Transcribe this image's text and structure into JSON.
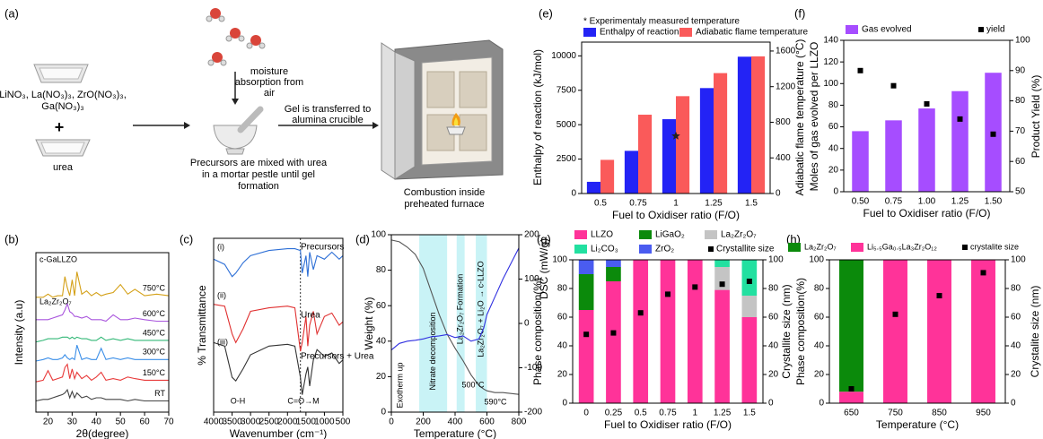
{
  "schematic": {
    "panel": "(a)",
    "precursors": [
      "LiNO₃, La(NO₃)₃, ZrO(NO₃)₃,",
      "Ga(NO₃)₃"
    ],
    "plus": "+",
    "urea": "urea",
    "moisture": [
      "moisture",
      "absorption from",
      "air"
    ],
    "mixing": [
      "Precursors are mixed with urea",
      "in a mortar pestle until gel",
      "formation"
    ],
    "transfer": [
      "Gel is transferred to",
      "alumina crucible"
    ],
    "furnace": [
      "Combustion inside",
      "preheated furnace"
    ]
  },
  "chart_data": [
    {
      "type": "bar",
      "panel": "(e)",
      "xlabel": "Fuel to Oxidiser ratio (F/O)",
      "ylabel": "Enthalpy of reaction (kJ/mol)",
      "y2label": "Adiabatic flame temperature (°C)",
      "categories": [
        "0.5",
        "0.75",
        "1",
        "1.25",
        "1.5"
      ],
      "ylim": [
        0,
        11000
      ],
      "yticks": [
        0,
        2500,
        5000,
        7500,
        10000
      ],
      "y2lim": [
        0,
        1700
      ],
      "y2ticks": [
        0,
        400,
        800,
        1200,
        1600
      ],
      "series": [
        {
          "name": "Enthalpy of reaction",
          "type": "bar",
          "color": "#2323f5",
          "values": [
            850,
            3100,
            5400,
            7660,
            9940
          ]
        },
        {
          "name": "Adiabatic flame temperature",
          "type": "bar",
          "axis": "y2",
          "color": "#fa5a5a",
          "values": [
            378,
            885,
            1093,
            1352,
            1540
          ]
        },
        {
          "name": "* Experimentaly measured temperature",
          "type": "scatter",
          "marker": "star",
          "axis": "y2",
          "color": "#222222",
          "values": [
            null,
            null,
            646,
            null,
            null
          ]
        }
      ]
    },
    {
      "type": "bar",
      "panel": "(f)",
      "xlabel": "Fuel to Oxidiser ratio (F/O)",
      "ylabel": "Moles of gas evolved per LLZO",
      "y2label": "Product Yield (%)",
      "categories": [
        "0.50",
        "0.75",
        "1.00",
        "1.25",
        "1.50"
      ],
      "ylim": [
        0,
        140
      ],
      "yticks": [
        0,
        20,
        40,
        60,
        80,
        100,
        120,
        140
      ],
      "y2lim": [
        50,
        100
      ],
      "y2ticks": [
        50,
        60,
        70,
        80,
        90,
        100
      ],
      "series": [
        {
          "name": "Gas evolved",
          "type": "bar",
          "color": "#a64dff",
          "values": [
            56,
            66,
            77,
            93,
            110
          ]
        },
        {
          "name": "yield",
          "type": "scatter",
          "marker": "square",
          "axis": "y2",
          "color": "#000000",
          "values": [
            90,
            85,
            79,
            74,
            69
          ]
        }
      ]
    },
    {
      "type": "line",
      "panel": "(b)",
      "xlabel": "2θ(degree)",
      "ylabel": "Intensity (a.u)",
      "xlim": [
        15,
        70
      ],
      "xticks": [
        20,
        30,
        40,
        50,
        60,
        70
      ],
      "ylim": [
        0,
        100
      ],
      "annotations": [
        "c-GaLLZO",
        "La₂Zr₂O₇"
      ],
      "x": [
        15,
        18,
        20,
        22,
        24,
        26,
        27,
        28,
        29,
        30,
        31,
        32,
        34,
        36,
        38,
        40,
        42,
        44,
        47,
        50,
        53,
        56,
        60,
        65,
        70
      ],
      "series": [
        {
          "name": "RT",
          "color": "#444444",
          "values": [
            7,
            8,
            8,
            9,
            10,
            11,
            12,
            14,
            9,
            13,
            9,
            12,
            9,
            10,
            8,
            9,
            9,
            8,
            8,
            8,
            7,
            8,
            7,
            7,
            7
          ]
        },
        {
          "name": "150°C",
          "color": "#e83a3a",
          "values": [
            19,
            20,
            26,
            20,
            21,
            22,
            28,
            30,
            21,
            27,
            21,
            25,
            21,
            23,
            20,
            22,
            25,
            20,
            21,
            20,
            22,
            21,
            20,
            20,
            20
          ]
        },
        {
          "name": "300°C",
          "color": "#3a8ee8",
          "values": [
            32,
            33,
            34,
            33,
            33,
            34,
            36,
            34,
            33,
            34,
            33,
            42,
            33,
            34,
            33,
            33,
            40,
            33,
            34,
            33,
            34,
            33,
            33,
            33,
            33
          ]
        },
        {
          "name": "450°C",
          "color": "#33b877",
          "values": [
            44,
            45,
            46,
            46,
            46,
            47,
            47,
            47,
            46,
            47,
            46,
            47,
            46,
            46,
            45,
            45,
            47,
            45,
            46,
            45,
            46,
            45,
            45,
            45,
            45
          ]
        },
        {
          "name": "600°C",
          "color": "#a955dd",
          "values": [
            58,
            58,
            58,
            59,
            60,
            61,
            64,
            68,
            63,
            62,
            60,
            60,
            59,
            60,
            58,
            58,
            58,
            57,
            61,
            58,
            58,
            59,
            58,
            57,
            57
          ]
        },
        {
          "name": "750°C",
          "color": "#d4a017",
          "values": [
            72,
            72,
            74,
            72,
            73,
            73,
            85,
            78,
            73,
            83,
            73,
            88,
            74,
            76,
            73,
            75,
            73,
            74,
            75,
            80,
            74,
            77,
            73,
            74,
            73
          ]
        }
      ]
    },
    {
      "type": "line",
      "panel": "(c)",
      "xlabel": "Wavenumber (cm⁻¹)",
      "ylabel": "% Transmittance",
      "xlim": [
        4000,
        500
      ],
      "xticks": [
        4000,
        3500,
        3000,
        2500,
        2000,
        1500,
        1000,
        500
      ],
      "ylim": [
        0,
        100
      ],
      "reference_x": 1650,
      "annotations": [
        "(i)",
        "(ii)",
        "(iii)",
        "O-H",
        "C=O→M"
      ],
      "x": [
        4000,
        3700,
        3500,
        3400,
        3200,
        3000,
        2500,
        2000,
        1800,
        1650,
        1600,
        1500,
        1450,
        1400,
        1300,
        1200,
        1000,
        800,
        600,
        500
      ],
      "series": [
        {
          "name": "Precursors",
          "color": "#2d6fd6",
          "values": [
            88,
            85,
            78,
            80,
            86,
            90,
            93,
            94,
            94,
            93,
            80,
            90,
            78,
            92,
            82,
            90,
            88,
            92,
            88,
            90
          ]
        },
        {
          "name": "Urea",
          "color": "#e03030",
          "values": [
            62,
            61,
            45,
            40,
            48,
            58,
            60,
            61,
            60,
            35,
            40,
            55,
            38,
            50,
            58,
            45,
            55,
            57,
            50,
            52
          ]
        },
        {
          "name": "Precursors + Urea",
          "color": "#333333",
          "values": [
            40,
            38,
            20,
            18,
            25,
            33,
            38,
            39,
            38,
            20,
            10,
            22,
            26,
            15,
            30,
            36,
            32,
            34,
            28,
            30
          ]
        }
      ]
    },
    {
      "type": "line",
      "panel": "(d)",
      "xlabel": "Temperature (°C)",
      "ylabel": "Weight (%)",
      "y2label": "DSC (mW/g)",
      "xlim": [
        0,
        800
      ],
      "xticks": [
        0,
        200,
        400,
        600,
        800
      ],
      "ylim": [
        0,
        100
      ],
      "yticks": [
        0,
        20,
        40,
        60,
        80,
        100
      ],
      "y2lim": [
        -200,
        200
      ],
      "y2ticks": [
        -200,
        -100,
        0,
        100,
        200
      ],
      "regions": [
        {
          "from": 175,
          "to": 350,
          "label": "Nitrate decomposition"
        },
        {
          "from": 410,
          "to": 460,
          "label": "La₂Zr₂O₇ Formation"
        },
        {
          "from": 530,
          "to": 600,
          "label": "La₂Zr₂O₇ + Li₂O → c-LLZO"
        }
      ],
      "annotations": [
        "Exotherm up",
        "500°C",
        "590°C"
      ],
      "x": [
        0,
        50,
        100,
        150,
        200,
        250,
        300,
        350,
        400,
        450,
        500,
        550,
        580,
        600,
        650,
        700,
        800
      ],
      "series": [
        {
          "color": "#555555",
          "values": [
            97,
            96,
            93,
            89,
            81,
            68,
            55,
            44,
            36,
            29,
            21,
            15,
            13,
            12,
            11,
            11,
            10
          ]
        },
        {
          "color": "#3030e0",
          "axis": "y2",
          "values": [
            -60,
            -45,
            -40,
            -38,
            -35,
            -30,
            -28,
            -25,
            -32,
            -28,
            -40,
            -35,
            -10,
            20,
            60,
            100,
            170
          ]
        }
      ]
    },
    {
      "type": "bar",
      "panel": "(g)",
      "stacked": true,
      "xlabel": "Fuel to Oxidiser ratio (F/O)",
      "ylabel": "Phase composition(%)",
      "y2label": "Crystallite size (nm)",
      "categories": [
        "0",
        "0.25",
        "0.5",
        "0.75",
        "1",
        "1.25",
        "1.5"
      ],
      "ylim": [
        0,
        100
      ],
      "yticks": [
        0,
        20,
        40,
        60,
        80,
        100
      ],
      "y2lim": [
        0,
        100
      ],
      "y2ticks": [
        0,
        20,
        40,
        60,
        80,
        100
      ],
      "series": [
        {
          "name": "LLZO",
          "type": "bar",
          "color": "#ff3399",
          "values": [
            65,
            85,
            100,
            100,
            100,
            79,
            60
          ]
        },
        {
          "name": "LiGaO₂",
          "type": "bar",
          "color": "#0b8a0b",
          "values": [
            25,
            10,
            0,
            0,
            0,
            0,
            0
          ]
        },
        {
          "name": "La₂Zr₂O₇",
          "type": "bar",
          "color": "#c4c4c4",
          "values": [
            0,
            0,
            0,
            0,
            0,
            16,
            15
          ]
        },
        {
          "name": "Li₂CO₃",
          "type": "bar",
          "color": "#22e0a0",
          "values": [
            0,
            0,
            0,
            0,
            0,
            5,
            25
          ]
        },
        {
          "name": "ZrO₂",
          "type": "bar",
          "color": "#4a5cf0",
          "values": [
            10,
            5,
            0,
            0,
            0,
            0,
            0
          ]
        },
        {
          "name": "Crystallite size",
          "type": "scatter",
          "marker": "square",
          "axis": "y2",
          "color": "#000000",
          "values": [
            48,
            49,
            63,
            76,
            81,
            83,
            85
          ]
        }
      ]
    },
    {
      "type": "bar",
      "panel": "(h)",
      "stacked": true,
      "xlabel": "Temperature (°C)",
      "ylabel": "Phase composition(%)",
      "y2label": "Crystalite size (nm)",
      "categories": [
        "650",
        "750",
        "850",
        "950"
      ],
      "ylim": [
        0,
        100
      ],
      "yticks": [
        0,
        20,
        40,
        60,
        80,
        100
      ],
      "y2lim": [
        0,
        100
      ],
      "y2ticks": [
        0,
        20,
        40,
        60,
        80,
        100
      ],
      "series": [
        {
          "name": "Li₅.₅Ga₀.₅La₃Zr₂O₁₂",
          "type": "bar",
          "color": "#ff3399",
          "values": [
            8,
            100,
            100,
            100
          ]
        },
        {
          "name": "La₂Zr₂O₇",
          "type": "bar",
          "color": "#0b8a0b",
          "values": [
            92,
            0,
            0,
            0
          ]
        },
        {
          "name": "crystalite size",
          "type": "scatter",
          "marker": "square",
          "axis": "y2",
          "color": "#000000",
          "values": [
            10,
            62,
            75,
            91
          ]
        }
      ]
    }
  ]
}
